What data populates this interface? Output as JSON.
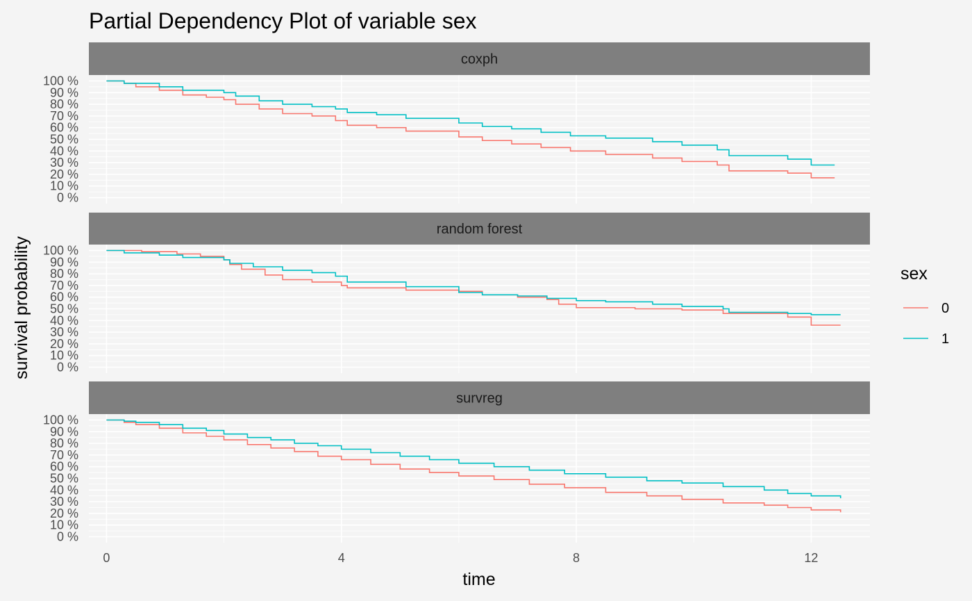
{
  "chart_data": {
    "type": "line",
    "title": "Partial Dependency Plot of variable sex",
    "xlabel": "time",
    "ylabel": "survival probability",
    "xlim": [
      -0.3,
      13.0
    ],
    "ylim": [
      0,
      1
    ],
    "x_ticks": [
      0,
      4,
      8,
      12
    ],
    "y_ticks": [
      0,
      0.1,
      0.2,
      0.3,
      0.4,
      0.5,
      0.6,
      0.7,
      0.8,
      0.9,
      1.0
    ],
    "y_tick_labels": [
      "0 %",
      "10 %",
      "20 %",
      "30 %",
      "40 %",
      "50 %",
      "60 %",
      "70 %",
      "80 %",
      "90 %",
      "100 %"
    ],
    "grid": true,
    "legend": {
      "title": "sex",
      "position": "right"
    },
    "colors": {
      "0": "#F8766D",
      "1": "#00BFC4"
    },
    "panels": [
      {
        "label": "coxph",
        "series": [
          {
            "name": "0",
            "points": [
              [
                0,
                1.0
              ],
              [
                0.3,
                0.98
              ],
              [
                0.5,
                0.95
              ],
              [
                0.9,
                0.92
              ],
              [
                1.3,
                0.88
              ],
              [
                1.7,
                0.86
              ],
              [
                2.0,
                0.84
              ],
              [
                2.2,
                0.8
              ],
              [
                2.6,
                0.76
              ],
              [
                3.0,
                0.72
              ],
              [
                3.5,
                0.7
              ],
              [
                3.9,
                0.66
              ],
              [
                4.1,
                0.62
              ],
              [
                4.6,
                0.6
              ],
              [
                5.1,
                0.57
              ],
              [
                6.0,
                0.52
              ],
              [
                6.4,
                0.49
              ],
              [
                6.9,
                0.46
              ],
              [
                7.4,
                0.43
              ],
              [
                7.9,
                0.4
              ],
              [
                8.5,
                0.37
              ],
              [
                9.3,
                0.34
              ],
              [
                9.8,
                0.31
              ],
              [
                10.4,
                0.28
              ],
              [
                10.6,
                0.23
              ],
              [
                11.6,
                0.21
              ],
              [
                12.0,
                0.17
              ],
              [
                12.4,
                0.17
              ]
            ]
          },
          {
            "name": "1",
            "points": [
              [
                0,
                1.0
              ],
              [
                0.3,
                0.98
              ],
              [
                0.9,
                0.95
              ],
              [
                1.3,
                0.92
              ],
              [
                2.0,
                0.9
              ],
              [
                2.2,
                0.87
              ],
              [
                2.6,
                0.83
              ],
              [
                3.0,
                0.8
              ],
              [
                3.5,
                0.78
              ],
              [
                3.9,
                0.76
              ],
              [
                4.1,
                0.73
              ],
              [
                4.6,
                0.71
              ],
              [
                5.1,
                0.68
              ],
              [
                6.0,
                0.64
              ],
              [
                6.4,
                0.61
              ],
              [
                6.9,
                0.59
              ],
              [
                7.4,
                0.56
              ],
              [
                7.9,
                0.53
              ],
              [
                8.5,
                0.51
              ],
              [
                9.3,
                0.48
              ],
              [
                9.8,
                0.45
              ],
              [
                10.4,
                0.41
              ],
              [
                10.6,
                0.36
              ],
              [
                11.6,
                0.33
              ],
              [
                12.0,
                0.28
              ],
              [
                12.4,
                0.28
              ]
            ]
          }
        ]
      },
      {
        "label": "random forest",
        "series": [
          {
            "name": "0",
            "points": [
              [
                0,
                1.0
              ],
              [
                0.6,
                0.99
              ],
              [
                1.2,
                0.97
              ],
              [
                1.6,
                0.95
              ],
              [
                2.0,
                0.92
              ],
              [
                2.1,
                0.88
              ],
              [
                2.3,
                0.84
              ],
              [
                2.7,
                0.79
              ],
              [
                3.0,
                0.75
              ],
              [
                3.5,
                0.73
              ],
              [
                4.0,
                0.7
              ],
              [
                4.1,
                0.68
              ],
              [
                5.1,
                0.66
              ],
              [
                6.0,
                0.65
              ],
              [
                6.4,
                0.62
              ],
              [
                7.0,
                0.6
              ],
              [
                7.5,
                0.58
              ],
              [
                7.7,
                0.54
              ],
              [
                8.0,
                0.51
              ],
              [
                9.0,
                0.5
              ],
              [
                9.8,
                0.49
              ],
              [
                10.5,
                0.46
              ],
              [
                11.6,
                0.43
              ],
              [
                12.0,
                0.36
              ],
              [
                12.5,
                0.36
              ]
            ]
          },
          {
            "name": "1",
            "points": [
              [
                0,
                1.0
              ],
              [
                0.3,
                0.98
              ],
              [
                0.9,
                0.96
              ],
              [
                1.3,
                0.94
              ],
              [
                2.0,
                0.92
              ],
              [
                2.1,
                0.89
              ],
              [
                2.5,
                0.86
              ],
              [
                3.0,
                0.83
              ],
              [
                3.5,
                0.81
              ],
              [
                3.9,
                0.78
              ],
              [
                4.1,
                0.73
              ],
              [
                5.1,
                0.69
              ],
              [
                6.0,
                0.64
              ],
              [
                6.4,
                0.62
              ],
              [
                7.0,
                0.61
              ],
              [
                7.5,
                0.59
              ],
              [
                8.0,
                0.57
              ],
              [
                8.5,
                0.56
              ],
              [
                9.3,
                0.54
              ],
              [
                9.8,
                0.52
              ],
              [
                10.5,
                0.5
              ],
              [
                10.6,
                0.47
              ],
              [
                11.6,
                0.46
              ],
              [
                12.0,
                0.45
              ],
              [
                12.5,
                0.45
              ]
            ]
          }
        ]
      },
      {
        "label": "survreg",
        "series": [
          {
            "name": "0",
            "points": [
              [
                0,
                1.0
              ],
              [
                0.3,
                0.98
              ],
              [
                0.5,
                0.96
              ],
              [
                0.9,
                0.93
              ],
              [
                1.3,
                0.89
              ],
              [
                1.7,
                0.86
              ],
              [
                2.0,
                0.83
              ],
              [
                2.4,
                0.79
              ],
              [
                2.8,
                0.76
              ],
              [
                3.2,
                0.73
              ],
              [
                3.6,
                0.69
              ],
              [
                4.0,
                0.66
              ],
              [
                4.5,
                0.62
              ],
              [
                5.0,
                0.58
              ],
              [
                5.5,
                0.55
              ],
              [
                6.0,
                0.52
              ],
              [
                6.6,
                0.49
              ],
              [
                7.2,
                0.45
              ],
              [
                7.8,
                0.42
              ],
              [
                8.5,
                0.38
              ],
              [
                9.2,
                0.35
              ],
              [
                9.8,
                0.32
              ],
              [
                10.5,
                0.29
              ],
              [
                11.2,
                0.27
              ],
              [
                11.6,
                0.25
              ],
              [
                12.0,
                0.23
              ],
              [
                12.5,
                0.21
              ]
            ]
          },
          {
            "name": "1",
            "points": [
              [
                0,
                1.0
              ],
              [
                0.3,
                0.99
              ],
              [
                0.5,
                0.98
              ],
              [
                0.9,
                0.96
              ],
              [
                1.3,
                0.93
              ],
              [
                1.7,
                0.91
              ],
              [
                2.0,
                0.88
              ],
              [
                2.4,
                0.85
              ],
              [
                2.8,
                0.83
              ],
              [
                3.2,
                0.8
              ],
              [
                3.6,
                0.78
              ],
              [
                4.0,
                0.75
              ],
              [
                4.5,
                0.72
              ],
              [
                5.0,
                0.69
              ],
              [
                5.5,
                0.66
              ],
              [
                6.0,
                0.63
              ],
              [
                6.6,
                0.6
              ],
              [
                7.2,
                0.57
              ],
              [
                7.8,
                0.54
              ],
              [
                8.5,
                0.51
              ],
              [
                9.2,
                0.48
              ],
              [
                9.8,
                0.46
              ],
              [
                10.5,
                0.43
              ],
              [
                11.2,
                0.4
              ],
              [
                11.6,
                0.37
              ],
              [
                12.0,
                0.35
              ],
              [
                12.5,
                0.33
              ]
            ]
          }
        ]
      }
    ]
  }
}
